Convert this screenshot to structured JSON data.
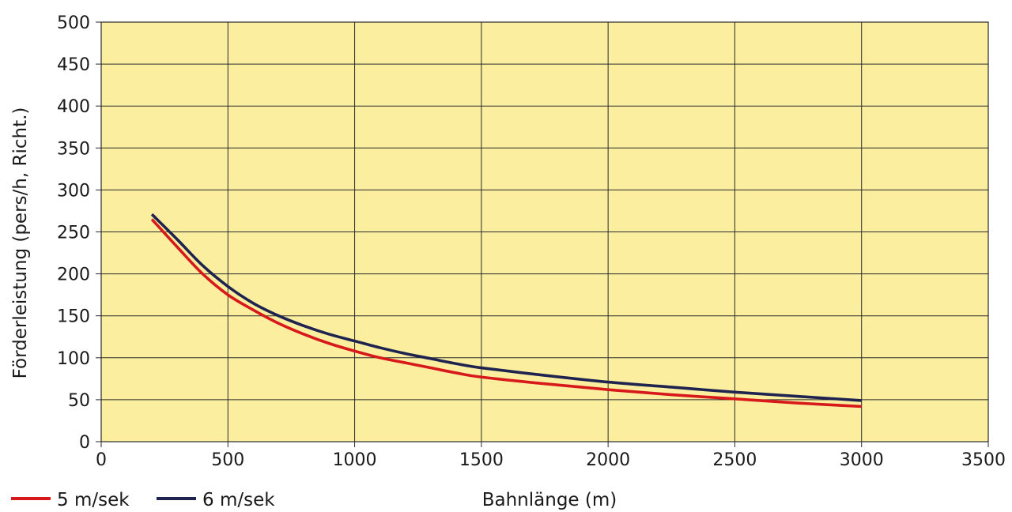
{
  "chart_data": {
    "type": "line",
    "xlabel": "Bahnlänge (m)",
    "ylabel": "Förderleistung (pers/h, Richt.)",
    "xlim": [
      0,
      3500
    ],
    "ylim": [
      0,
      500
    ],
    "x_ticks": [
      0,
      500,
      1000,
      1500,
      2000,
      2500,
      3000,
      3500
    ],
    "y_ticks": [
      0,
      50,
      100,
      150,
      200,
      250,
      300,
      350,
      400,
      450,
      500
    ],
    "x_tick_labels": [
      "0",
      "500",
      "1000",
      "1500",
      "2000",
      "2500",
      "3000",
      "3500"
    ],
    "y_tick_labels": [
      "0",
      "50",
      "100",
      "150",
      "200",
      "250",
      "300",
      "350",
      "400",
      "450",
      "500"
    ],
    "grid": true,
    "plot_background": "#fbef9f",
    "legend_position": "bottom-left",
    "series": [
      {
        "name": "5 m/sek",
        "color": "#d7191c",
        "x": [
          200,
          300,
          400,
          500,
          600,
          700,
          800,
          900,
          1000,
          1100,
          1200,
          1300,
          1400,
          1500,
          1750,
          2000,
          2250,
          2500,
          2750,
          3000
        ],
        "y": [
          265,
          232,
          200,
          175,
          157,
          141,
          128,
          117,
          108,
          100,
          94,
          88,
          82,
          77,
          69,
          62,
          56,
          51,
          46,
          42
        ]
      },
      {
        "name": "6 m/sek",
        "color": "#1f2350",
        "x": [
          200,
          300,
          400,
          500,
          600,
          700,
          800,
          900,
          1000,
          1100,
          1200,
          1300,
          1400,
          1500,
          1750,
          2000,
          2250,
          2500,
          2750,
          3000
        ],
        "y": [
          271,
          241,
          210,
          185,
          165,
          150,
          138,
          128,
          120,
          112,
          105,
          99,
          93,
          88,
          79,
          71,
          65,
          59,
          54,
          49
        ]
      }
    ]
  }
}
